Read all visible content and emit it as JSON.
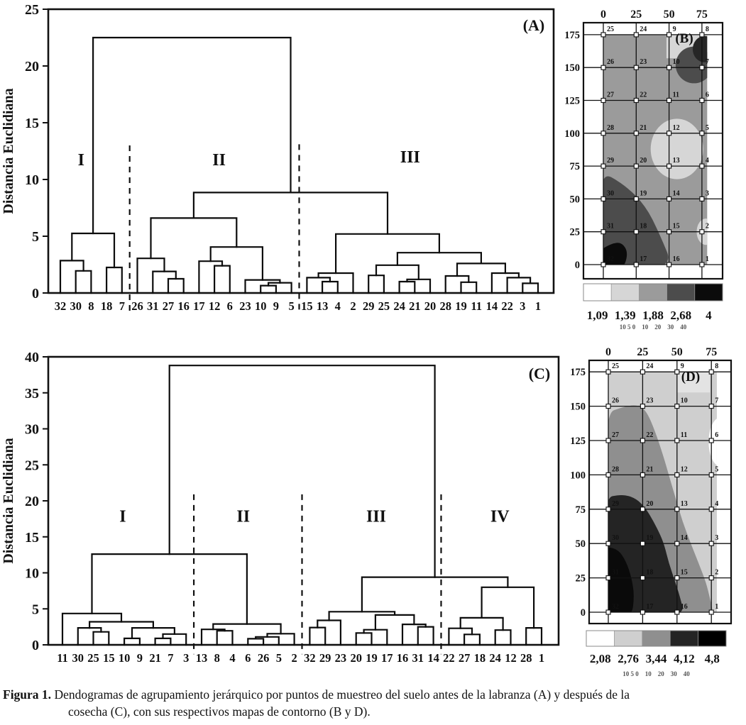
{
  "caption": {
    "label": "Figura 1.",
    "line1": "Dendogramas de agrupamiento jerárquico por puntos de muestreo del suelo antes de la labranza (A) y después de la",
    "line2": "cosecha (C), con sus respectivos mapas de contorno (B y D)."
  },
  "chart_data": [
    {
      "id": "A",
      "type": "dendrogram",
      "panel_label": "(A)",
      "ylabel": "Distancia Euclidiana",
      "ylim": [
        0,
        25
      ],
      "yticks": [
        0,
        5,
        10,
        15,
        20,
        25
      ],
      "leaves": [
        "32",
        "30",
        "8",
        "18",
        "7",
        "26",
        "31",
        "27",
        "16",
        "17",
        "12",
        "6",
        "23",
        "10",
        "9",
        "5",
        "15",
        "13",
        "4",
        "2",
        "29",
        "25",
        "24",
        "21",
        "20",
        "28",
        "19",
        "11",
        "14",
        "22",
        "3",
        "1"
      ],
      "merges": [
        [
          1,
          2,
          1.95
        ],
        [
          0,
          32,
          2.85
        ],
        [
          3,
          4,
          2.25
        ],
        [
          33,
          34,
          5.25
        ],
        [
          7,
          8,
          1.25
        ],
        [
          6,
          36,
          1.9
        ],
        [
          5,
          37,
          3.05
        ],
        [
          10,
          11,
          2.4
        ],
        [
          9,
          39,
          2.8
        ],
        [
          13,
          14,
          0.65
        ],
        [
          41,
          15,
          0.9
        ],
        [
          12,
          42,
          1.15
        ],
        [
          40,
          43,
          4.05
        ],
        [
          38,
          44,
          6.6
        ],
        [
          17,
          18,
          1.0
        ],
        [
          16,
          46,
          1.35
        ],
        [
          47,
          19,
          1.75
        ],
        [
          20,
          21,
          1.55
        ],
        [
          22,
          23,
          1.0
        ],
        [
          50,
          24,
          1.2
        ],
        [
          49,
          51,
          2.45
        ],
        [
          26,
          27,
          0.95
        ],
        [
          25,
          53,
          1.5
        ],
        [
          30,
          31,
          0.85
        ],
        [
          29,
          55,
          1.35
        ],
        [
          28,
          56,
          1.75
        ],
        [
          54,
          57,
          2.6
        ],
        [
          52,
          58,
          3.55
        ],
        [
          48,
          59,
          5.2
        ],
        [
          45,
          60,
          8.85
        ],
        [
          35,
          61,
          22.5
        ]
      ],
      "groups": [
        {
          "label": "I",
          "leaf_pos": 1.35,
          "h": 11.25
        },
        {
          "label": "II",
          "leaf_pos": 10.3,
          "h": 11.25
        },
        {
          "label": "III",
          "leaf_pos": 22.7,
          "h": 11.5
        }
      ],
      "dividers": [
        {
          "gap": 4.5,
          "h_top": 13.0,
          "h_bottom": -1.7
        },
        {
          "gap": 15.5,
          "h_top": 13.1,
          "h_bottom": -1.7
        }
      ]
    },
    {
      "id": "B",
      "type": "contour-map",
      "panel_label": "(B)",
      "x_ticks": [
        "0",
        "25",
        "50",
        "75"
      ],
      "y_ticks": [
        "175",
        "150",
        "125",
        "100",
        "75",
        "50",
        "25",
        "0"
      ],
      "grid_numbers": [
        [
          "25",
          "24",
          "9",
          "8"
        ],
        [
          "26",
          "23",
          "10",
          "7"
        ],
        [
          "27",
          "22",
          "11",
          "6"
        ],
        [
          "28",
          "21",
          "12",
          "5"
        ],
        [
          "29",
          "20",
          "13",
          "4"
        ],
        [
          "30",
          "19",
          "14",
          "3"
        ],
        [
          "31",
          "18",
          "15",
          "2"
        ],
        [
          "32",
          "17",
          "16",
          "1"
        ]
      ],
      "legend_values": [
        "1,09",
        "1,39",
        "1,88",
        "2,68",
        "4"
      ],
      "legend_colors": [
        "#ffffff",
        "#d6d6d6",
        "#9b9b9b",
        "#4c4c4c",
        "#0b0b0b"
      ],
      "scale_text": "10 5 0    10    20    30    40",
      "regions": [
        {
          "shape": "rect",
          "x": [
            -4,
            82
          ],
          "y": [
            -4,
            178
          ],
          "color": "#9b9b9b",
          "name": "zone-1-88-base"
        },
        {
          "shape": "rect",
          "x": [
            48,
            82
          ],
          "y": [
            157,
            178
          ],
          "color": "#d6d6d6",
          "name": "zone-1-39-top"
        },
        {
          "shape": "ellipse",
          "c": [
            69,
            152
          ],
          "r": [
            14,
            14
          ],
          "color": "#4c4c4c",
          "name": "zone-2-68-topright"
        },
        {
          "shape": "ellipse",
          "c": [
            77,
            164
          ],
          "r": [
            9,
            10
          ],
          "color": "#262626",
          "name": "zone-dark-core"
        },
        {
          "shape": "ellipse",
          "c": [
            56,
            88
          ],
          "r": [
            20,
            23
          ],
          "color": "#d6d6d6",
          "name": "zone-1-39-mid"
        },
        {
          "shape": "ellipse",
          "c": [
            78,
            25
          ],
          "r": [
            7,
            10
          ],
          "color": "#d6d6d6",
          "name": "zone-1-39-right"
        },
        {
          "shape": "poly",
          "pts": [
            [
              -4,
              72
            ],
            [
              16,
              61
            ],
            [
              32,
              45
            ],
            [
              43,
              23
            ],
            [
              54,
              -4
            ],
            [
              -4,
              -4
            ]
          ],
          "color": "#4c4c4c",
          "name": "zone-2-68-bottomleft"
        },
        {
          "shape": "poly",
          "pts": [
            [
              -4,
              10
            ],
            [
              6,
              16
            ],
            [
              14,
              17
            ],
            [
              19,
              9
            ],
            [
              15,
              -4
            ],
            [
              -4,
              -4
            ]
          ],
          "color": "#0b0b0b",
          "name": "zone-4-black"
        }
      ]
    },
    {
      "id": "C",
      "type": "dendrogram",
      "panel_label": "(C)",
      "ylabel": "Distancia Euclidiana",
      "ylim": [
        0,
        40
      ],
      "yticks": [
        0,
        5,
        10,
        15,
        20,
        25,
        30,
        35,
        40
      ],
      "leaves": [
        "11",
        "30",
        "25",
        "15",
        "10",
        "9",
        "21",
        "7",
        "3",
        "13",
        "8",
        "4",
        "6",
        "26",
        "5",
        "2",
        "32",
        "29",
        "23",
        "20",
        "19",
        "17",
        "16",
        "31",
        "14",
        "22",
        "27",
        "18",
        "24",
        "12",
        "28",
        "1"
      ],
      "merges": [
        [
          2,
          3,
          1.8
        ],
        [
          1,
          32,
          2.35
        ],
        [
          4,
          5,
          0.9
        ],
        [
          6,
          7,
          0.9
        ],
        [
          35,
          8,
          1.5
        ],
        [
          34,
          36,
          2.35
        ],
        [
          33,
          37,
          3.2
        ],
        [
          0,
          38,
          4.35
        ],
        [
          10,
          11,
          1.95
        ],
        [
          9,
          40,
          2.15
        ],
        [
          12,
          13,
          0.85
        ],
        [
          42,
          14,
          1.1
        ],
        [
          43,
          15,
          1.55
        ],
        [
          41,
          44,
          2.9
        ],
        [
          16,
          17,
          2.4
        ],
        [
          46,
          18,
          3.4
        ],
        [
          19,
          20,
          1.65
        ],
        [
          48,
          21,
          2.1
        ],
        [
          23,
          24,
          2.5
        ],
        [
          22,
          50,
          2.85
        ],
        [
          49,
          51,
          4.15
        ],
        [
          47,
          52,
          4.6
        ],
        [
          26,
          27,
          1.45
        ],
        [
          25,
          54,
          2.3
        ],
        [
          28,
          29,
          2.05
        ],
        [
          55,
          56,
          3.75
        ],
        [
          30,
          31,
          2.35
        ],
        [
          57,
          58,
          8.0
        ],
        [
          39,
          45,
          12.6
        ],
        [
          53,
          59,
          9.4
        ],
        [
          60,
          61,
          38.8
        ]
      ],
      "groups": [
        {
          "label": "I",
          "leaf_pos": 3.9,
          "h": 17.1
        },
        {
          "label": "II",
          "leaf_pos": 11.7,
          "h": 17.1
        },
        {
          "label": "III",
          "leaf_pos": 20.3,
          "h": 17.1
        },
        {
          "label": "IV",
          "leaf_pos": 28.3,
          "h": 17.1
        }
      ],
      "dividers": [
        {
          "gap": 8.5,
          "h_top": 20.9,
          "h_bottom": -1.3
        },
        {
          "gap": 15.5,
          "h_top": 20.9,
          "h_bottom": -1.3
        },
        {
          "gap": 24.5,
          "h_top": 20.9,
          "h_bottom": -1.3
        }
      ]
    },
    {
      "id": "D",
      "type": "contour-map",
      "panel_label": "(D)",
      "x_ticks": [
        "0",
        "25",
        "50",
        "75"
      ],
      "y_ticks": [
        "175",
        "150",
        "125",
        "100",
        "75",
        "50",
        "25",
        "0"
      ],
      "grid_numbers": [
        [
          "25",
          "24",
          "9",
          "8"
        ],
        [
          "26",
          "23",
          "10",
          "7"
        ],
        [
          "27",
          "22",
          "11",
          "6"
        ],
        [
          "28",
          "21",
          "12",
          "5"
        ],
        [
          "29",
          "20",
          "13",
          "4"
        ],
        [
          "30",
          "19",
          "14",
          "3"
        ],
        [
          "31",
          "18",
          "15",
          "2"
        ],
        [
          "32",
          "17",
          "16",
          "1"
        ]
      ],
      "legend_values": [
        "2,08",
        "2,76",
        "3,44",
        "4,12",
        "4,8"
      ],
      "legend_colors": [
        "#ffffff",
        "#cfcfcf",
        "#8f8f8f",
        "#242424",
        "#000000"
      ],
      "scale_text": "10 5 0    10    20    30    40",
      "regions": [
        {
          "shape": "rect",
          "x": [
            -4,
            82
          ],
          "y": [
            -4,
            178
          ],
          "color": "#cfcfcf",
          "name": "zone-2-76-base"
        },
        {
          "shape": "rect",
          "x": [
            50,
            74
          ],
          "y": [
            160,
            178
          ],
          "color": "#e3e3e3",
          "name": "label-patch"
        },
        {
          "shape": "poly",
          "pts": [
            [
              -4,
              144
            ],
            [
              12,
              150
            ],
            [
              22,
              151
            ],
            [
              28,
              146
            ],
            [
              34,
              132
            ],
            [
              40,
              114
            ],
            [
              44,
              100
            ],
            [
              49,
              83
            ],
            [
              54,
              66
            ],
            [
              60,
              50
            ],
            [
              66,
              35
            ],
            [
              71,
              22
            ],
            [
              74,
              10
            ],
            [
              77,
              -4
            ],
            [
              -4,
              -4
            ]
          ],
          "color": "#8f8f8f",
          "name": "zone-3-44"
        },
        {
          "shape": "ellipse",
          "c": [
            82,
            124
          ],
          "r": [
            9,
            18
          ],
          "color": "#ffffff",
          "name": "zone-2-08-white"
        },
        {
          "shape": "poly",
          "pts": [
            [
              -4,
              83
            ],
            [
              10,
              86
            ],
            [
              20,
              83
            ],
            [
              27,
              76
            ],
            [
              33,
              66
            ],
            [
              38,
              56
            ],
            [
              41,
              48
            ],
            [
              44,
              36
            ],
            [
              48,
              24
            ],
            [
              52,
              12
            ],
            [
              56,
              -4
            ],
            [
              -4,
              -4
            ]
          ],
          "color": "#242424",
          "name": "zone-4-12"
        },
        {
          "shape": "poly",
          "pts": [
            [
              -4,
              48
            ],
            [
              7,
              46
            ],
            [
              13,
              37
            ],
            [
              17,
              25
            ],
            [
              19,
              12
            ],
            [
              17,
              -4
            ],
            [
              -4,
              -4
            ]
          ],
          "color": "#0a0a0a",
          "name": "zone-4-8"
        }
      ]
    }
  ]
}
